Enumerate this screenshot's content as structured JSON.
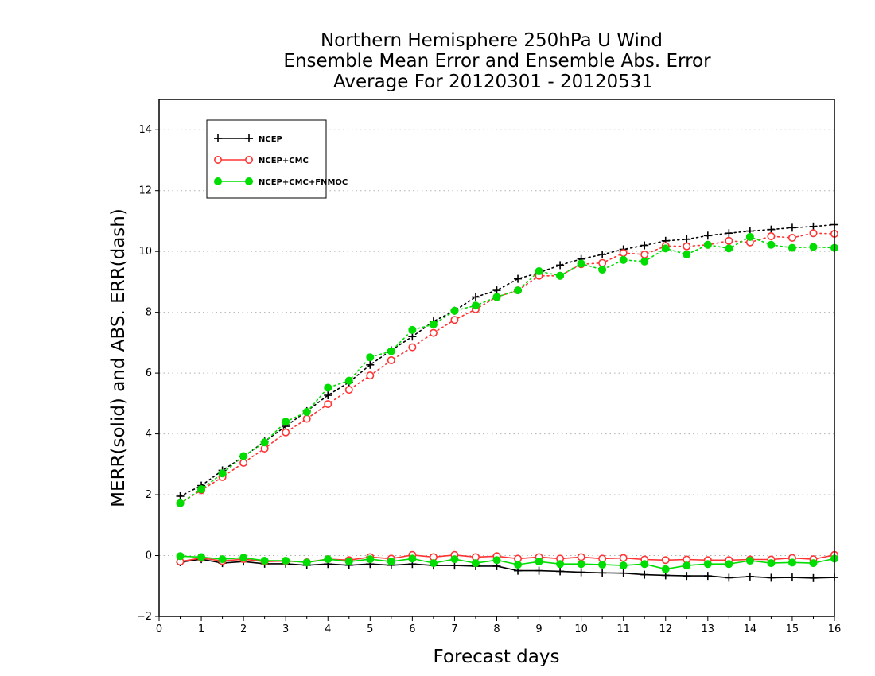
{
  "chart_data": {
    "type": "line",
    "title": [
      "Northern Hemisphere 250hPa U Wind",
      "Ensemble Mean Error and Ensemble Abs. Error",
      "Average For 20120301 - 20120531"
    ],
    "xlabel": "Forecast days",
    "ylabel": "MERR(solid) and ABS. ERR(dash)",
    "xlim": [
      0,
      16
    ],
    "ylim": [
      -2,
      15
    ],
    "xticks": [
      0,
      1,
      2,
      3,
      4,
      5,
      6,
      7,
      8,
      9,
      10,
      11,
      12,
      13,
      14,
      15,
      16
    ],
    "yticks": [
      -2,
      0,
      2,
      4,
      6,
      8,
      10,
      12,
      14
    ],
    "grid": "horizontal dotted",
    "legend_position": "top-left",
    "x": [
      0.5,
      1.0,
      1.5,
      2.0,
      2.5,
      3.0,
      3.5,
      4.0,
      4.5,
      5.0,
      5.5,
      6.0,
      6.5,
      7.0,
      7.5,
      8.0,
      8.5,
      9.0,
      9.5,
      10.0,
      10.5,
      11.0,
      11.5,
      12.0,
      12.5,
      13.0,
      13.5,
      14.0,
      14.5,
      15.0,
      15.5,
      16.0
    ],
    "series": [
      {
        "name": "NCEP",
        "color": "#000000",
        "marker": "plus",
        "merr": [
          -0.22,
          -0.12,
          -0.25,
          -0.2,
          -0.27,
          -0.27,
          -0.32,
          -0.28,
          -0.32,
          -0.28,
          -0.32,
          -0.28,
          -0.33,
          -0.33,
          -0.35,
          -0.35,
          -0.5,
          -0.5,
          -0.52,
          -0.55,
          -0.57,
          -0.58,
          -0.63,
          -0.65,
          -0.67,
          -0.67,
          -0.73,
          -0.69,
          -0.73,
          -0.72,
          -0.74,
          -0.72
        ],
        "abs_err": [
          1.95,
          2.3,
          2.8,
          3.25,
          3.75,
          4.25,
          4.75,
          5.27,
          5.7,
          6.27,
          6.75,
          7.2,
          7.7,
          8.05,
          8.5,
          8.72,
          9.1,
          9.3,
          9.55,
          9.75,
          9.9,
          10.07,
          10.2,
          10.35,
          10.4,
          10.52,
          10.6,
          10.67,
          10.72,
          10.78,
          10.82,
          10.88
        ]
      },
      {
        "name": "NCEP+CMC",
        "color": "#ff3333",
        "marker": "open-circle",
        "merr": [
          -0.2,
          -0.08,
          -0.18,
          -0.12,
          -0.2,
          -0.18,
          -0.22,
          -0.12,
          -0.15,
          -0.05,
          -0.1,
          0.02,
          -0.05,
          0.02,
          -0.05,
          -0.02,
          -0.1,
          -0.05,
          -0.1,
          -0.05,
          -0.1,
          -0.08,
          -0.13,
          -0.15,
          -0.13,
          -0.15,
          -0.15,
          -0.13,
          -0.13,
          -0.08,
          -0.12,
          0.02
        ],
        "abs_err": [
          1.72,
          2.15,
          2.58,
          3.05,
          3.52,
          4.05,
          4.5,
          4.98,
          5.45,
          5.92,
          6.42,
          6.85,
          7.32,
          7.75,
          8.1,
          8.5,
          8.72,
          9.2,
          9.2,
          9.58,
          9.62,
          9.95,
          9.9,
          10.18,
          10.17,
          10.22,
          10.35,
          10.3,
          10.5,
          10.45,
          10.6,
          10.58
        ]
      },
      {
        "name": "NCEP+CMC+FNMOC",
        "color": "#00dd00",
        "marker": "filled-circle",
        "merr": [
          -0.02,
          -0.05,
          -0.12,
          -0.07,
          -0.17,
          -0.17,
          -0.23,
          -0.12,
          -0.2,
          -0.12,
          -0.2,
          -0.1,
          -0.25,
          -0.12,
          -0.25,
          -0.15,
          -0.3,
          -0.2,
          -0.28,
          -0.28,
          -0.3,
          -0.33,
          -0.28,
          -0.45,
          -0.33,
          -0.28,
          -0.28,
          -0.17,
          -0.25,
          -0.23,
          -0.25,
          -0.1
        ],
        "abs_err": [
          1.72,
          2.18,
          2.7,
          3.27,
          3.72,
          4.4,
          4.72,
          5.52,
          5.75,
          6.52,
          6.72,
          7.42,
          7.6,
          8.05,
          8.22,
          8.5,
          8.72,
          9.35,
          9.2,
          9.6,
          9.4,
          9.72,
          9.67,
          10.1,
          9.9,
          10.22,
          10.1,
          10.48,
          10.22,
          10.12,
          10.15,
          10.12
        ]
      }
    ]
  }
}
